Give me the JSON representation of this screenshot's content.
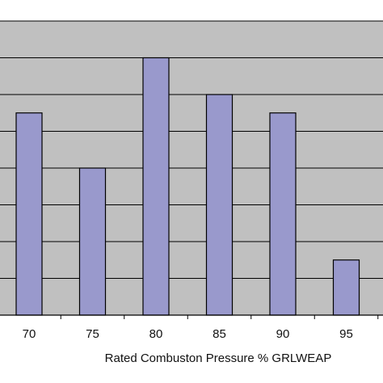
{
  "chart_data": {
    "type": "bar",
    "categories": [
      "70",
      "75",
      "80",
      "85",
      "90",
      "95"
    ],
    "values": [
      5.5,
      4.0,
      7.0,
      6.0,
      5.5,
      1.5
    ],
    "xlabel": "Rated Combuston Pressure % GRLWEAP",
    "ylim": [
      0,
      8
    ],
    "grid": true,
    "legend": "none",
    "colors": {
      "plot_background": "#c0c0c0",
      "bar_fill": "#9999cc",
      "bar_stroke": "#000000",
      "gridline": "#000000",
      "page_background": "#ffffff"
    }
  }
}
